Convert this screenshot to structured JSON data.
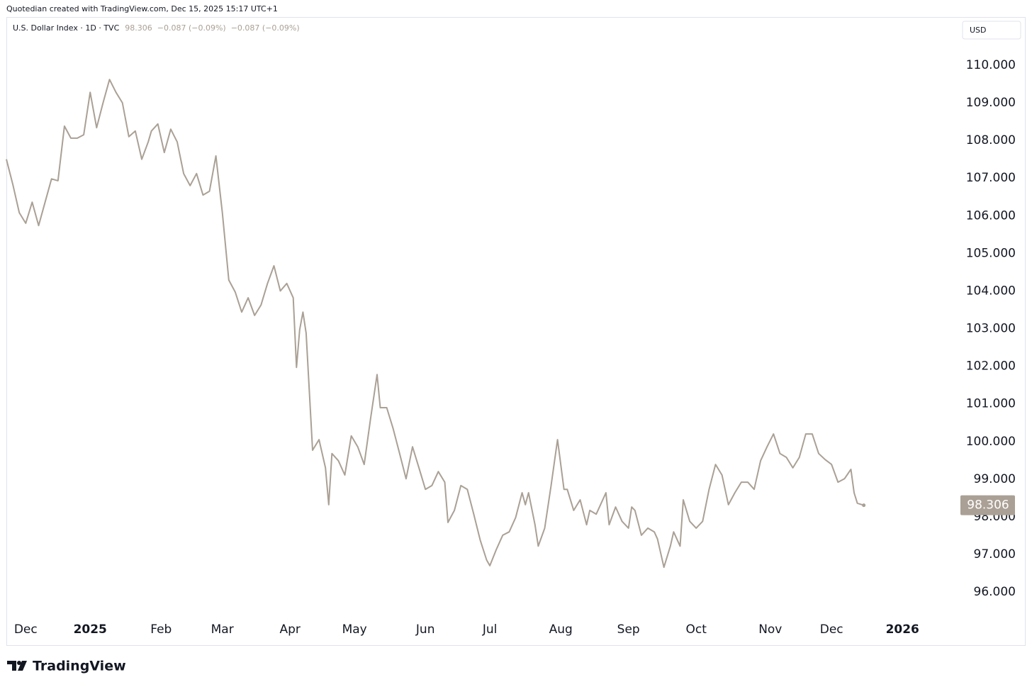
{
  "credit": "Quotedian created with TradingView.com, Dec 15, 2025 15:17 UTC+1",
  "brand": "TradingView",
  "chart_data": {
    "type": "line",
    "currency": "USD",
    "changes": [
      "−0.087 (−0.09%)",
      "−0.087 (−0.09%)"
    ],
    "x": [
      0,
      2,
      4,
      6,
      8,
      10,
      12,
      14,
      16,
      18,
      20,
      22,
      24,
      26,
      28,
      30,
      32,
      34,
      36,
      38,
      40,
      42,
      44,
      45,
      47,
      49,
      51,
      53,
      55,
      57,
      59,
      61,
      63,
      65,
      67,
      69,
      71,
      73,
      75,
      77,
      79,
      81,
      83,
      85,
      87,
      89,
      90,
      91,
      92,
      93,
      95,
      97,
      99,
      100,
      101,
      103,
      105,
      107,
      109,
      111,
      113,
      115,
      116,
      118,
      120,
      122,
      124,
      126,
      128,
      130,
      132,
      134,
      136,
      137,
      139,
      141,
      143,
      145,
      147,
      149,
      150,
      152,
      154,
      156,
      158,
      160,
      161,
      162,
      164,
      165,
      167,
      169,
      171,
      173,
      174,
      176,
      178,
      180,
      181,
      183,
      184,
      186,
      187,
      189,
      191,
      193,
      194,
      195,
      197,
      199,
      201,
      202,
      204,
      206,
      207,
      209,
      210,
      212,
      214,
      216,
      218,
      220,
      222,
      224,
      226,
      228,
      230,
      232,
      234,
      236,
      238,
      240,
      242,
      244,
      246,
      248,
      250,
      252,
      254,
      256,
      258,
      260,
      262,
      263,
      264,
      266
    ],
    "series": [
      {
        "name": "U.S. Dollar Index · 1D · TVC",
        "color": "#aaa095",
        "values": [
          107.5,
          106.83,
          106.08,
          105.8,
          106.36,
          105.74,
          106.36,
          106.98,
          106.93,
          108.38,
          108.06,
          108.06,
          108.15,
          109.28,
          108.34,
          109.0,
          109.62,
          109.28,
          109.0,
          108.1,
          108.25,
          107.5,
          107.96,
          108.25,
          108.44,
          107.68,
          108.3,
          107.96,
          107.12,
          106.8,
          107.12,
          106.55,
          106.65,
          107.59,
          106.08,
          104.29,
          103.97,
          103.44,
          103.82,
          103.35,
          103.63,
          104.2,
          104.67,
          104.0,
          104.2,
          103.82,
          101.97,
          102.97,
          103.44,
          102.88,
          99.77,
          100.05,
          99.3,
          98.32,
          99.68,
          99.49,
          99.11,
          100.15,
          99.86,
          99.39,
          100.62,
          101.78,
          100.9,
          100.9,
          100.34,
          99.68,
          99.01,
          99.86,
          99.3,
          98.73,
          98.83,
          99.2,
          98.92,
          97.85,
          98.17,
          98.83,
          98.73,
          98.07,
          97.38,
          96.85,
          96.7,
          97.13,
          97.51,
          97.6,
          97.98,
          98.64,
          98.32,
          98.64,
          97.79,
          97.22,
          97.7,
          98.83,
          100.05,
          98.73,
          98.73,
          98.17,
          98.45,
          97.79,
          98.17,
          98.07,
          98.26,
          98.64,
          97.79,
          98.26,
          97.88,
          97.7,
          98.26,
          98.17,
          97.51,
          97.7,
          97.6,
          97.41,
          96.66,
          97.22,
          97.6,
          97.22,
          98.45,
          97.88,
          97.7,
          97.88,
          98.73,
          99.39,
          99.11,
          98.32,
          98.64,
          98.92,
          98.92,
          98.73,
          99.49,
          99.86,
          100.2,
          99.68,
          99.58,
          99.3,
          99.58,
          100.2,
          100.2,
          99.68,
          99.52,
          99.39,
          98.92,
          99.01,
          99.26,
          98.64,
          98.36,
          98.306
        ]
      }
    ],
    "xlim": [
      0,
      294
    ],
    "xticks": [
      {
        "value": 6,
        "label": "Dec"
      },
      {
        "value": 26,
        "label": "2025"
      },
      {
        "value": 48,
        "label": "Feb"
      },
      {
        "value": 67,
        "label": "Mar"
      },
      {
        "value": 88,
        "label": "Apr"
      },
      {
        "value": 108,
        "label": "May"
      },
      {
        "value": 130,
        "label": "Jun"
      },
      {
        "value": 150,
        "label": "Jul"
      },
      {
        "value": 172,
        "label": "Aug"
      },
      {
        "value": 193,
        "label": "Sep"
      },
      {
        "value": 214,
        "label": "Oct"
      },
      {
        "value": 237,
        "label": "Nov"
      },
      {
        "value": 256,
        "label": "Dec"
      },
      {
        "value": 278,
        "label": "2026"
      }
    ],
    "ylim": [
      95.38,
      111.28
    ],
    "yticks": [
      {
        "value": 96,
        "label": "96.000"
      },
      {
        "value": 97,
        "label": "97.000"
      },
      {
        "value": 98,
        "label": "98.000"
      },
      {
        "value": 99,
        "label": "99.000"
      },
      {
        "value": 100,
        "label": "100.000"
      },
      {
        "value": 101,
        "label": "101.000"
      },
      {
        "value": 102,
        "label": "102.000"
      },
      {
        "value": 103,
        "label": "103.000"
      },
      {
        "value": 104,
        "label": "104.000"
      },
      {
        "value": 105,
        "label": "105.000"
      },
      {
        "value": 106,
        "label": "106.000"
      },
      {
        "value": 107,
        "label": "107.000"
      },
      {
        "value": 108,
        "label": "108.000"
      },
      {
        "value": 109,
        "label": "109.000"
      },
      {
        "value": 110,
        "label": "110.000"
      }
    ],
    "grid": false
  }
}
